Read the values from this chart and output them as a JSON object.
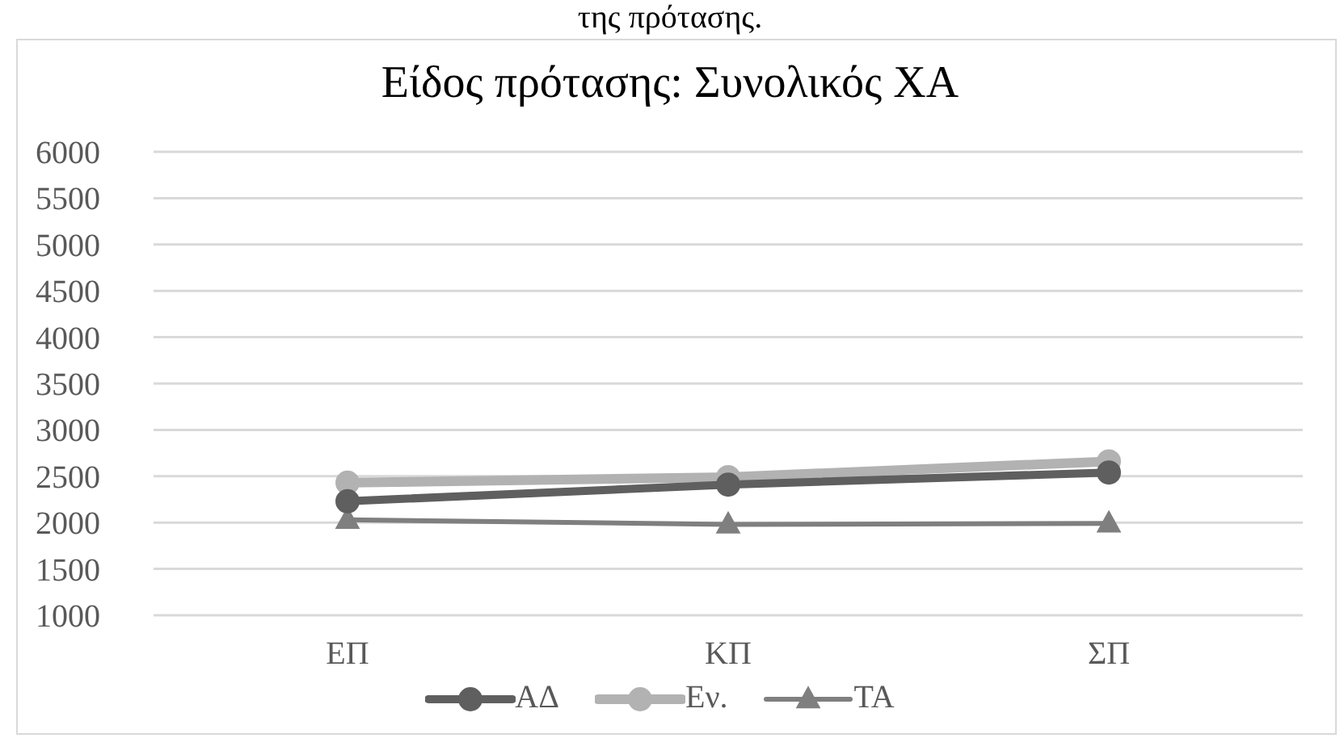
{
  "chart_data": {
    "type": "line",
    "title": "Είδος πρότασης: Συνολικός ΧΑ",
    "annotations": [
      "της πρότασης."
    ],
    "categories": [
      "ΕΠ",
      "ΚΠ",
      "ΣΠ"
    ],
    "series": [
      {
        "name": "ΑΔ",
        "color": "#5f5f5f",
        "values": [
          2230,
          2410,
          2540
        ],
        "marker": "circle"
      },
      {
        "name": "Εν.",
        "color": "#b2b2b2",
        "values": [
          2430,
          2490,
          2660
        ],
        "marker": "circle"
      },
      {
        "name": "ΤΑ",
        "color": "#7f7f7f",
        "values": [
          2030,
          1980,
          1990
        ],
        "marker": "triangle"
      }
    ],
    "ylim": [
      1000,
      6000
    ],
    "yticks": [
      1000,
      1500,
      2000,
      2500,
      3000,
      3500,
      4000,
      4500,
      5000,
      5500,
      6000
    ],
    "grid": "y",
    "legend": "bottom"
  }
}
